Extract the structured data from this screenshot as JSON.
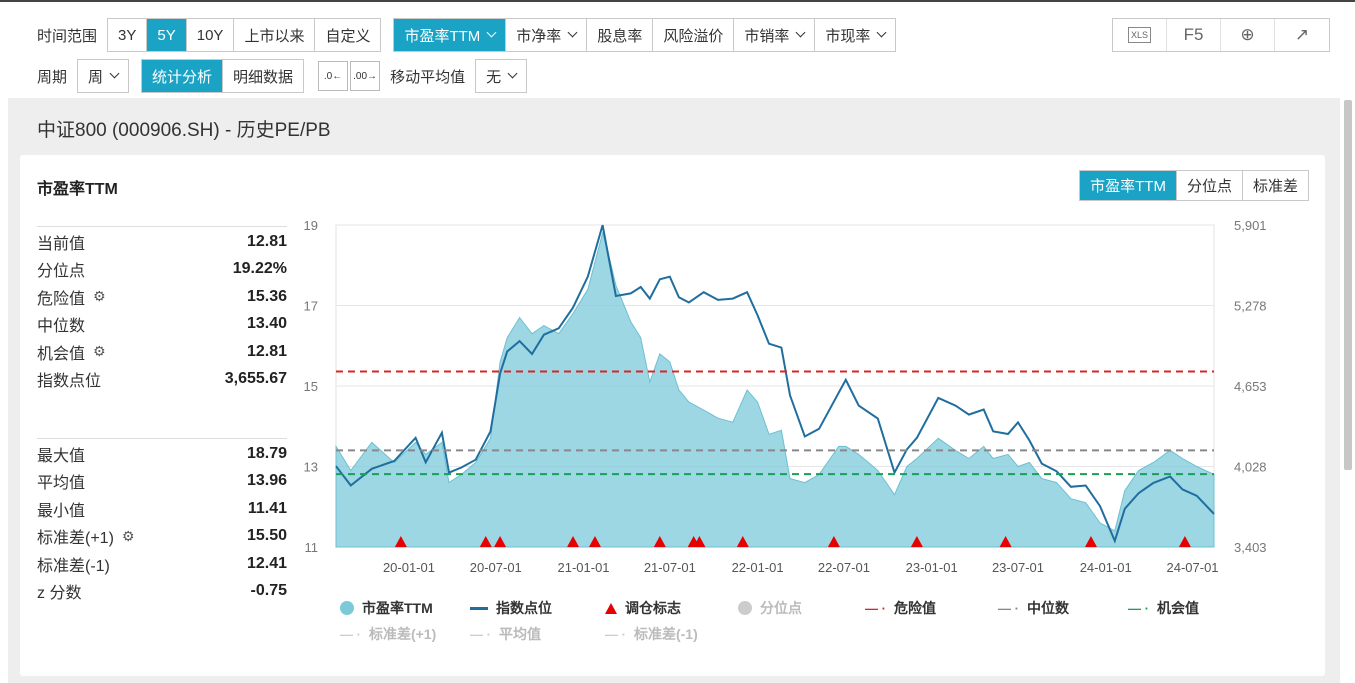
{
  "toolbar": {
    "range_label": "时间范围",
    "range_buttons": [
      "3Y",
      "5Y",
      "10Y",
      "上市以来",
      "自定义"
    ],
    "range_active": "5Y",
    "metric_buttons": [
      "市盈率TTM",
      "市净率",
      "股息率",
      "风险溢价",
      "市销率",
      "市现率"
    ],
    "metric_active": "市盈率TTM",
    "period_label": "周期",
    "period_value": "周",
    "view_buttons": [
      "统计分析",
      "明细数据"
    ],
    "view_active": "统计分析",
    "ma_label": "移动平均值",
    "ma_value": "无",
    "tools": [
      "XLS",
      "F5",
      "⊕",
      "↗"
    ]
  },
  "panel_title": "中证800 (000906.SH) - 历史PE/PB",
  "card_title": "市盈率TTM",
  "seg_buttons": [
    "市盈率TTM",
    "分位点",
    "标准差"
  ],
  "seg_active": "市盈率TTM",
  "stats1": [
    {
      "k": "当前值",
      "v": "12.81",
      "gear": false
    },
    {
      "k": "分位点",
      "v": "19.22%",
      "gear": false
    },
    {
      "k": "危险值",
      "v": "15.36",
      "gear": true
    },
    {
      "k": "中位数",
      "v": "13.40",
      "gear": false
    },
    {
      "k": "机会值",
      "v": "12.81",
      "gear": true
    },
    {
      "k": "指数点位",
      "v": "3,655.67",
      "gear": false
    }
  ],
  "stats2": [
    {
      "k": "最大值",
      "v": "18.79",
      "gear": false
    },
    {
      "k": "平均值",
      "v": "13.96",
      "gear": false
    },
    {
      "k": "最小值",
      "v": "11.41",
      "gear": false
    },
    {
      "k": "标准差(+1)",
      "v": "15.50",
      "gear": true
    },
    {
      "k": "标准差(-1)",
      "v": "12.41",
      "gear": false
    },
    {
      "k": "z 分数",
      "v": "-0.75",
      "gear": false
    }
  ],
  "legend": [
    {
      "label": "市盈率TTM",
      "kind": "dot",
      "color": "#7ccad9",
      "dim": false
    },
    {
      "label": "指数点位",
      "kind": "line",
      "color": "#1f6e9e",
      "dim": false
    },
    {
      "label": "调仓标志",
      "kind": "tri",
      "color": "#e60000",
      "dim": false
    },
    {
      "label": "分位点",
      "kind": "dot",
      "color": "#cccccc",
      "dim": true
    },
    {
      "label": "危险值",
      "kind": "dash",
      "color": "#d62728",
      "dim": false
    },
    {
      "label": "中位数",
      "kind": "dash",
      "color": "#888888",
      "dim": false
    },
    {
      "label": "机会值",
      "kind": "dash",
      "color": "#1a9e5a",
      "dim": false
    },
    {
      "label": "标准差(+1)",
      "kind": "dash",
      "color": "#cccccc",
      "dim": true
    },
    {
      "label": "平均值",
      "kind": "dash",
      "color": "#cccccc",
      "dim": true
    },
    {
      "label": "标准差(-1)",
      "kind": "dash",
      "color": "#cccccc",
      "dim": true
    }
  ],
  "chart_data": {
    "type": "area",
    "x_ticks": [
      "20-01-01",
      "20-07-01",
      "21-01-01",
      "21-07-01",
      "22-01-01",
      "22-07-01",
      "23-01-01",
      "23-07-01",
      "24-01-01",
      "24-07-01"
    ],
    "y_left_ticks": [
      11,
      13,
      15,
      17,
      19
    ],
    "y_left_range": [
      11,
      19
    ],
    "y_right_ticks": [
      "3,403",
      "4,028",
      "4,653",
      "5,278",
      "5,901"
    ],
    "y_right_range": [
      3403,
      5901
    ],
    "x_range": [
      "2019-08-01",
      "2024-08-15"
    ],
    "lines": {
      "danger": 15.36,
      "median": 13.4,
      "opportunity": 12.81
    },
    "line_colors": {
      "danger": "#d62728",
      "median": "#888888",
      "opportunity": "#1a9e5a"
    },
    "series": [
      {
        "name": "市盈率TTM",
        "color": "#7ccad9",
        "points": [
          [
            "2019-08-01",
            13.5
          ],
          [
            "2019-09-01",
            12.9
          ],
          [
            "2019-10-15",
            13.6
          ],
          [
            "2019-12-01",
            13.1
          ],
          [
            "2020-01-15",
            13.6
          ],
          [
            "2020-02-05",
            13.3
          ],
          [
            "2020-03-10",
            13.6
          ],
          [
            "2020-03-25",
            12.6
          ],
          [
            "2020-04-20",
            12.8
          ],
          [
            "2020-05-20",
            13.1
          ],
          [
            "2020-06-20",
            13.7
          ],
          [
            "2020-07-10",
            15.6
          ],
          [
            "2020-07-25",
            16.2
          ],
          [
            "2020-08-20",
            16.7
          ],
          [
            "2020-09-15",
            16.3
          ],
          [
            "2020-10-10",
            16.5
          ],
          [
            "2020-11-10",
            16.3
          ],
          [
            "2020-12-10",
            16.8
          ],
          [
            "2021-01-10",
            17.4
          ],
          [
            "2021-02-10",
            18.8
          ],
          [
            "2021-02-20",
            18.4
          ],
          [
            "2021-03-10",
            17.5
          ],
          [
            "2021-04-10",
            16.6
          ],
          [
            "2021-05-01",
            16.2
          ],
          [
            "2021-05-20",
            15.1
          ],
          [
            "2021-06-10",
            15.8
          ],
          [
            "2021-07-01",
            15.6
          ],
          [
            "2021-07-20",
            14.9
          ],
          [
            "2021-08-10",
            14.6
          ],
          [
            "2021-09-10",
            14.4
          ],
          [
            "2021-10-10",
            14.2
          ],
          [
            "2021-11-10",
            14.1
          ],
          [
            "2021-12-10",
            14.9
          ],
          [
            "2022-01-01",
            14.6
          ],
          [
            "2022-01-25",
            13.8
          ],
          [
            "2022-02-20",
            13.9
          ],
          [
            "2022-03-10",
            12.7
          ],
          [
            "2022-04-10",
            12.6
          ],
          [
            "2022-05-10",
            12.8
          ],
          [
            "2022-06-20",
            13.5
          ],
          [
            "2022-07-05",
            13.5
          ],
          [
            "2022-08-01",
            13.3
          ],
          [
            "2022-09-10",
            12.9
          ],
          [
            "2022-10-15",
            12.3
          ],
          [
            "2022-11-10",
            13.0
          ],
          [
            "2022-12-01",
            13.2
          ],
          [
            "2023-01-15",
            13.7
          ],
          [
            "2023-02-20",
            13.4
          ],
          [
            "2023-03-20",
            13.2
          ],
          [
            "2023-04-20",
            13.5
          ],
          [
            "2023-05-10",
            13.2
          ],
          [
            "2023-06-10",
            13.3
          ],
          [
            "2023-07-01",
            13.0
          ],
          [
            "2023-07-25",
            13.1
          ],
          [
            "2023-08-20",
            12.7
          ],
          [
            "2023-09-20",
            12.6
          ],
          [
            "2023-10-20",
            12.2
          ],
          [
            "2023-11-20",
            12.1
          ],
          [
            "2023-12-20",
            11.6
          ],
          [
            "2024-01-20",
            11.4
          ],
          [
            "2024-02-10",
            12.4
          ],
          [
            "2024-03-10",
            12.9
          ],
          [
            "2024-04-10",
            13.1
          ],
          [
            "2024-05-15",
            13.4
          ],
          [
            "2024-06-10",
            13.2
          ],
          [
            "2024-07-10",
            13.0
          ],
          [
            "2024-08-15",
            12.8
          ]
        ]
      },
      {
        "name": "指数点位",
        "color": "#1f6e9e",
        "axis": "right",
        "points": [
          [
            "2019-08-01",
            4030
          ],
          [
            "2019-09-01",
            3880
          ],
          [
            "2019-10-15",
            4010
          ],
          [
            "2019-12-01",
            4070
          ],
          [
            "2020-01-15",
            4250
          ],
          [
            "2020-02-05",
            4060
          ],
          [
            "2020-03-10",
            4290
          ],
          [
            "2020-03-25",
            3980
          ],
          [
            "2020-04-20",
            4020
          ],
          [
            "2020-05-20",
            4080
          ],
          [
            "2020-06-20",
            4300
          ],
          [
            "2020-07-10",
            4750
          ],
          [
            "2020-07-25",
            4920
          ],
          [
            "2020-08-20",
            5000
          ],
          [
            "2020-09-15",
            4900
          ],
          [
            "2020-10-10",
            5050
          ],
          [
            "2020-11-10",
            5100
          ],
          [
            "2020-12-10",
            5260
          ],
          [
            "2021-01-10",
            5500
          ],
          [
            "2021-02-10",
            5900
          ],
          [
            "2021-02-20",
            5700
          ],
          [
            "2021-03-10",
            5350
          ],
          [
            "2021-04-10",
            5370
          ],
          [
            "2021-05-01",
            5420
          ],
          [
            "2021-05-20",
            5330
          ],
          [
            "2021-06-10",
            5480
          ],
          [
            "2021-07-01",
            5500
          ],
          [
            "2021-07-20",
            5340
          ],
          [
            "2021-08-10",
            5300
          ],
          [
            "2021-09-10",
            5380
          ],
          [
            "2021-10-10",
            5320
          ],
          [
            "2021-11-10",
            5330
          ],
          [
            "2021-12-10",
            5380
          ],
          [
            "2022-01-01",
            5200
          ],
          [
            "2022-01-25",
            4980
          ],
          [
            "2022-02-20",
            4950
          ],
          [
            "2022-03-10",
            4580
          ],
          [
            "2022-04-10",
            4260
          ],
          [
            "2022-05-10",
            4320
          ],
          [
            "2022-06-20",
            4600
          ],
          [
            "2022-07-05",
            4700
          ],
          [
            "2022-08-01",
            4500
          ],
          [
            "2022-09-10",
            4400
          ],
          [
            "2022-10-15",
            3980
          ],
          [
            "2022-11-10",
            4160
          ],
          [
            "2022-12-01",
            4250
          ],
          [
            "2023-01-15",
            4560
          ],
          [
            "2023-02-20",
            4500
          ],
          [
            "2023-03-20",
            4430
          ],
          [
            "2023-04-20",
            4470
          ],
          [
            "2023-05-10",
            4300
          ],
          [
            "2023-06-10",
            4280
          ],
          [
            "2023-07-01",
            4370
          ],
          [
            "2023-07-25",
            4230
          ],
          [
            "2023-08-20",
            4050
          ],
          [
            "2023-09-20",
            3990
          ],
          [
            "2023-10-20",
            3870
          ],
          [
            "2023-11-20",
            3880
          ],
          [
            "2023-12-20",
            3720
          ],
          [
            "2024-01-20",
            3450
          ],
          [
            "2024-02-10",
            3700
          ],
          [
            "2024-03-10",
            3820
          ],
          [
            "2024-04-10",
            3900
          ],
          [
            "2024-05-15",
            3950
          ],
          [
            "2024-06-10",
            3850
          ],
          [
            "2024-07-10",
            3800
          ],
          [
            "2024-08-15",
            3660
          ]
        ]
      },
      {
        "name": "调仓标志",
        "color": "#e60000",
        "kind": "markers",
        "dates": [
          "2019-12-15",
          "2020-06-10",
          "2020-07-10",
          "2020-12-10",
          "2021-01-25",
          "2021-06-10",
          "2021-08-20",
          "2021-09-01",
          "2021-12-01",
          "2022-06-10",
          "2022-12-01",
          "2023-06-05",
          "2023-12-01",
          "2024-06-15"
        ]
      }
    ]
  }
}
